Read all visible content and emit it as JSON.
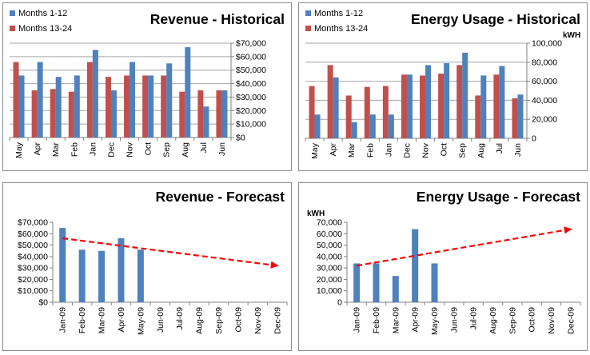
{
  "colors": {
    "months_1_12": "#4f81bd",
    "months_13_24": "#c0504d",
    "trend": "#ff0000",
    "gridline": "#a6a6a6"
  },
  "chart_data": [
    {
      "type": "bar",
      "title": "Revenue - Historical",
      "categories": [
        "May",
        "Apr",
        "Mar",
        "Feb",
        "Jan",
        "Dec",
        "Nov",
        "Oct",
        "Sep",
        "Aug",
        "Jul",
        "Jun"
      ],
      "series": [
        {
          "name": "Months 1-12",
          "values": [
            46000,
            56000,
            45000,
            46000,
            65000,
            35000,
            56000,
            46000,
            55000,
            67000,
            23000,
            35000
          ]
        },
        {
          "name": "Months 13-24",
          "values": [
            56000,
            35000,
            36000,
            34000,
            56000,
            45000,
            46000,
            46000,
            46000,
            34000,
            35000,
            35000
          ]
        }
      ],
      "legend": "top-left",
      "y_axis_side": "right",
      "ylim": [
        0,
        70000
      ],
      "yticks": [
        0,
        10000,
        20000,
        30000,
        40000,
        50000,
        60000,
        70000
      ],
      "ytick_labels": [
        "$0",
        "$10,000",
        "$20,000",
        "$30,000",
        "$40,000",
        "$50,000",
        "$60,000",
        "$70,000"
      ],
      "ylabel": "",
      "grid": true
    },
    {
      "type": "bar",
      "title": "Energy Usage - Historical",
      "categories": [
        "May",
        "Apr",
        "Mar",
        "Feb",
        "Jan",
        "Dec",
        "Nov",
        "Oct",
        "Sep",
        "Aug",
        "Jul",
        "Jun"
      ],
      "series": [
        {
          "name": "Months 1-12",
          "values": [
            25000,
            64000,
            17000,
            25000,
            25000,
            67000,
            77000,
            79000,
            90000,
            66000,
            76000,
            46000
          ]
        },
        {
          "name": "Months 13-24",
          "values": [
            55000,
            77000,
            45000,
            54000,
            55000,
            67000,
            66000,
            68000,
            77000,
            45000,
            67000,
            42000
          ]
        }
      ],
      "legend": "top-left",
      "y_axis_side": "right",
      "ylim": [
        0,
        100000
      ],
      "yticks": [
        0,
        20000,
        40000,
        60000,
        80000,
        100000
      ],
      "ytick_labels": [
        "0",
        "20,000",
        "40,000",
        "60,000",
        "80,000",
        "100,000"
      ],
      "ylabel": "kWH",
      "grid": true
    },
    {
      "type": "bar",
      "title": "Revenue - Forecast",
      "categories": [
        "Jan-09",
        "Feb-09",
        "Mar-09",
        "Apr-09",
        "May-09",
        "Jun-09",
        "Jul-09",
        "Aug-09",
        "Sep-09",
        "Oct-09",
        "Nov-09",
        "Dec-09"
      ],
      "series": [
        {
          "name": "",
          "values": [
            65000,
            46000,
            45000,
            56000,
            46000,
            null,
            null,
            null,
            null,
            null,
            null,
            null
          ]
        }
      ],
      "trend": {
        "start": 56000,
        "end": 32000
      },
      "y_axis_side": "left",
      "ylim": [
        0,
        70000
      ],
      "yticks": [
        0,
        10000,
        20000,
        30000,
        40000,
        50000,
        60000,
        70000
      ],
      "ytick_labels": [
        "$0",
        "$10,000",
        "$20,000",
        "$30,000",
        "$40,000",
        "$50,000",
        "$60,000",
        "$70,000"
      ],
      "ylabel": "",
      "grid": false
    },
    {
      "type": "bar",
      "title": "Energy Usage - Forecast",
      "categories": [
        "Jan-09",
        "Feb-09",
        "Mar-09",
        "Apr-09",
        "May-09",
        "Jun-09",
        "Jul-09",
        "Aug-09",
        "Sep-09",
        "Oct-09",
        "Nov-09",
        "Dec-09"
      ],
      "series": [
        {
          "name": "",
          "values": [
            34000,
            34000,
            23000,
            64000,
            34000,
            null,
            null,
            null,
            null,
            null,
            null,
            null
          ]
        }
      ],
      "trend": {
        "start": 32000,
        "end": 64000
      },
      "y_axis_side": "left",
      "ylim": [
        0,
        70000
      ],
      "yticks": [
        0,
        10000,
        20000,
        30000,
        40000,
        50000,
        60000,
        70000
      ],
      "ytick_labels": [
        "0",
        "10,000",
        "20,000",
        "30,000",
        "40,000",
        "50,000",
        "60,000",
        "70,000"
      ],
      "ylabel": "kWH",
      "grid": false
    }
  ]
}
